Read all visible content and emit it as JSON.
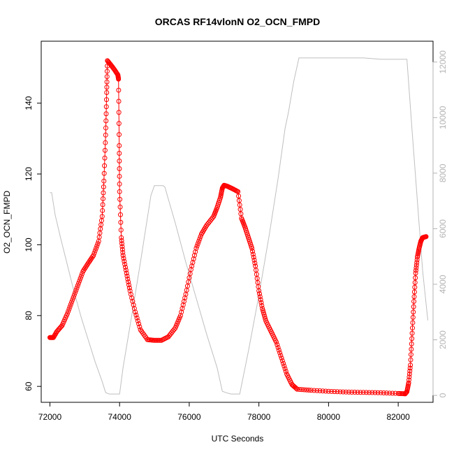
{
  "chart_data": {
    "type": "line",
    "title": "ORCAS RF14vlonN O2_OCN_FMPD",
    "xlabel": "UTC Seconds",
    "ylabel": "O2_OCN_FMPD",
    "xlim": [
      71750,
      83000
    ],
    "ylim": [
      55.5,
      157.5
    ],
    "y2lim": [
      -250,
      12750
    ],
    "x_ticks": [
      72000,
      74000,
      76000,
      78000,
      80000,
      82000
    ],
    "x_tick_labels": [
      "72000",
      "74000",
      "76000",
      "78000",
      "80000",
      "82000"
    ],
    "y_ticks": [
      60,
      80,
      100,
      120,
      140
    ],
    "y_tick_labels": [
      "60",
      "80",
      "100",
      "120",
      "140"
    ],
    "y2_ticks": [
      0,
      2000,
      4000,
      6000,
      8000,
      10000,
      12000
    ],
    "y2_tick_labels": [
      "0",
      "2000",
      "4000",
      "6000",
      "8000",
      "10000",
      "12000"
    ],
    "grid": false,
    "colors": {
      "primary": "#ff0000",
      "secondary": "#bfbfbf",
      "axis": "#000000",
      "secondary_axis": "#b3b3b3"
    },
    "series": [
      {
        "axis": "left",
        "style": "line+circles",
        "color": "#ff0000",
        "points": [
          [
            72000,
            73.8
          ],
          [
            72100,
            73.8
          ],
          [
            72200,
            75.5
          ],
          [
            72350,
            77.2
          ],
          [
            72500,
            80.5
          ],
          [
            72650,
            84.5
          ],
          [
            72800,
            88.5
          ],
          [
            72950,
            92.5
          ],
          [
            73100,
            94.8
          ],
          [
            73250,
            97.0
          ],
          [
            73400,
            101.0
          ],
          [
            73500,
            108.0
          ],
          [
            73550,
            118.0
          ],
          [
            73600,
            131.0
          ],
          [
            73630,
            143.0
          ],
          [
            73650,
            152.0
          ],
          [
            73750,
            150.8
          ],
          [
            73850,
            149.5
          ],
          [
            73950,
            148.0
          ],
          [
            73970,
            146.8
          ],
          [
            73990,
            128.0
          ],
          [
            74000,
            115.0
          ],
          [
            74050,
            102.0
          ],
          [
            74100,
            97.0
          ],
          [
            74200,
            92.0
          ],
          [
            74300,
            87.0
          ],
          [
            74450,
            81.0
          ],
          [
            74600,
            76.0
          ],
          [
            74800,
            73.2
          ],
          [
            75000,
            73.0
          ],
          [
            75200,
            73.0
          ],
          [
            75400,
            74.0
          ],
          [
            75600,
            76.5
          ],
          [
            75750,
            80.0
          ],
          [
            75900,
            86.0
          ],
          [
            76050,
            93.0
          ],
          [
            76200,
            99.0
          ],
          [
            76350,
            103.0
          ],
          [
            76500,
            105.5
          ],
          [
            76700,
            108.0
          ],
          [
            76800,
            110.5
          ],
          [
            76900,
            113.5
          ],
          [
            76950,
            116.0
          ],
          [
            77000,
            116.8
          ],
          [
            77100,
            116.5
          ],
          [
            77250,
            115.8
          ],
          [
            77400,
            115.0
          ],
          [
            77500,
            107.5
          ],
          [
            77600,
            105.0
          ],
          [
            77700,
            102.0
          ],
          [
            77800,
            99.0
          ],
          [
            77900,
            94.0
          ],
          [
            78000,
            87.0
          ],
          [
            78100,
            82.0
          ],
          [
            78200,
            78.5
          ],
          [
            78350,
            75.5
          ],
          [
            78500,
            72.5
          ],
          [
            78650,
            68.0
          ],
          [
            78800,
            63.5
          ],
          [
            78950,
            60.5
          ],
          [
            79100,
            59.2
          ],
          [
            79500,
            58.9
          ],
          [
            80000,
            58.6
          ],
          [
            80500,
            58.4
          ],
          [
            81000,
            58.3
          ],
          [
            81500,
            58.2
          ],
          [
            82000,
            58.0
          ],
          [
            82200,
            57.9
          ],
          [
            82250,
            58.5
          ],
          [
            82300,
            61.0
          ],
          [
            82350,
            66.0
          ],
          [
            82400,
            75.0
          ],
          [
            82450,
            84.0
          ],
          [
            82500,
            92.0
          ],
          [
            82550,
            96.5
          ],
          [
            82600,
            99.0
          ],
          [
            82650,
            101.0
          ],
          [
            82700,
            102.0
          ],
          [
            82800,
            102.3
          ]
        ]
      },
      {
        "axis": "right",
        "style": "line",
        "color": "#bfbfbf",
        "points": [
          [
            72000,
            7300
          ],
          [
            72050,
            7300
          ],
          [
            72150,
            6500
          ],
          [
            72300,
            5700
          ],
          [
            72500,
            4700
          ],
          [
            72700,
            3700
          ],
          [
            72900,
            2800
          ],
          [
            73100,
            2000
          ],
          [
            73300,
            1200
          ],
          [
            73500,
            500
          ],
          [
            73600,
            100
          ],
          [
            73700,
            50
          ],
          [
            74000,
            50
          ],
          [
            74100,
            1000
          ],
          [
            74300,
            2500
          ],
          [
            74600,
            4800
          ],
          [
            74900,
            7200
          ],
          [
            75000,
            7550
          ],
          [
            75250,
            7550
          ],
          [
            75300,
            7500
          ],
          [
            75600,
            6200
          ],
          [
            75900,
            4800
          ],
          [
            76200,
            3500
          ],
          [
            76500,
            2200
          ],
          [
            76800,
            1000
          ],
          [
            76950,
            150
          ],
          [
            77050,
            100
          ],
          [
            77200,
            50
          ],
          [
            77450,
            50
          ],
          [
            77700,
            1600
          ],
          [
            78000,
            3600
          ],
          [
            78300,
            5800
          ],
          [
            78550,
            7800
          ],
          [
            78750,
            9600
          ],
          [
            78850,
            10200
          ],
          [
            79000,
            11300
          ],
          [
            79150,
            12150
          ],
          [
            80000,
            12150
          ],
          [
            81000,
            12150
          ],
          [
            81500,
            12100
          ],
          [
            82000,
            12100
          ],
          [
            82250,
            12100
          ],
          [
            82400,
            9500
          ],
          [
            82550,
            7000
          ],
          [
            82700,
            4500
          ],
          [
            82850,
            2700
          ]
        ]
      }
    ]
  }
}
